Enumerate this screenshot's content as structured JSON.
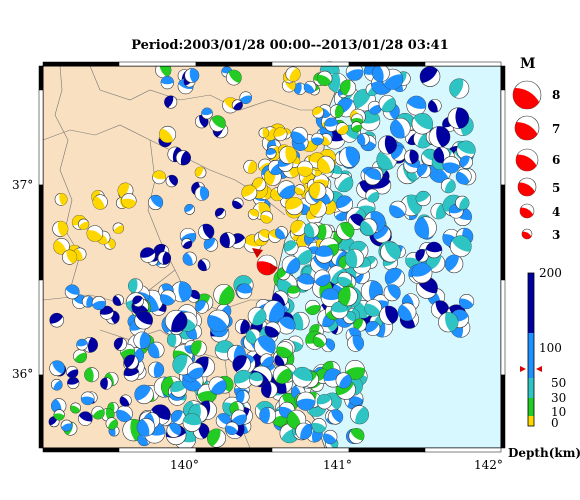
{
  "title": "Period:2003/01/28 00:00--2013/01/28 03:41",
  "axes": {
    "lat_ticks": [
      {
        "label": "37°",
        "value": 37
      },
      {
        "label": "36°",
        "value": 36
      }
    ],
    "lon_ticks": [
      {
        "label": "140°",
        "value": 140
      },
      {
        "label": "141°",
        "value": 141
      },
      {
        "label": "142°",
        "value": 142
      }
    ]
  },
  "magnitude_legend": {
    "title": "M",
    "values": [
      "8",
      "7",
      "6",
      "5",
      "4",
      "3"
    ]
  },
  "depth_scale": {
    "title": "Depth(km)",
    "labels": [
      "200",
      "100",
      "50",
      "30",
      "10",
      "0"
    ],
    "colors": {
      "deep": "#0000a0",
      "mid": "#1e90ff",
      "shallow1": "#2ec4c4",
      "shallow2": "#22cc22",
      "surface": "#ffd700"
    }
  },
  "colors": {
    "land": "#f9e0c0",
    "sea": "#d8f8ff",
    "highlight": "#ff0000"
  },
  "highlight_event": {
    "magnitude": "6"
  }
}
